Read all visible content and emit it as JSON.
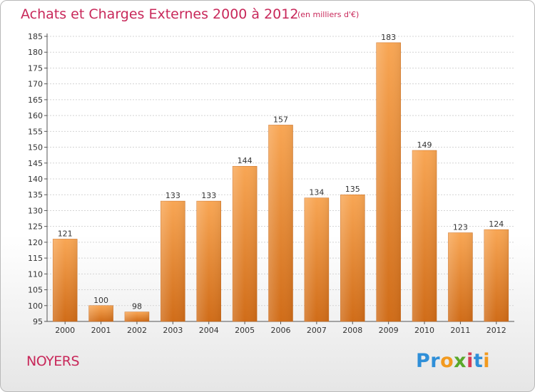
{
  "header": {
    "title": "Achats et Charges Externes 2000 à 2012",
    "subtitle": "(en milliers d'€)"
  },
  "footer": {
    "town": "NOYERS",
    "logo": [
      "Pr",
      "o",
      "x",
      "i",
      "t",
      "i"
    ]
  },
  "colors": {
    "title": "#c8285a",
    "bar_light": "#f7a44f",
    "bar_dark": "#d4701c",
    "grid": "#d4d4d4"
  },
  "chart_data": {
    "type": "bar",
    "title": "Achats et Charges Externes 2000 à 2012",
    "subtitle": "(en milliers d'€)",
    "xlabel": "",
    "ylabel": "",
    "categories": [
      "2000",
      "2001",
      "2002",
      "2003",
      "2004",
      "2005",
      "2006",
      "2007",
      "2008",
      "2009",
      "2010",
      "2011",
      "2012"
    ],
    "values": [
      121,
      100,
      98,
      133,
      133,
      144,
      157,
      134,
      135,
      183,
      149,
      123,
      124
    ],
    "ylim": [
      95,
      185
    ],
    "yticks": [
      95,
      100,
      105,
      110,
      115,
      120,
      125,
      130,
      135,
      140,
      145,
      150,
      155,
      160,
      165,
      170,
      175,
      180,
      185
    ],
    "grid": true,
    "legend": "none"
  }
}
